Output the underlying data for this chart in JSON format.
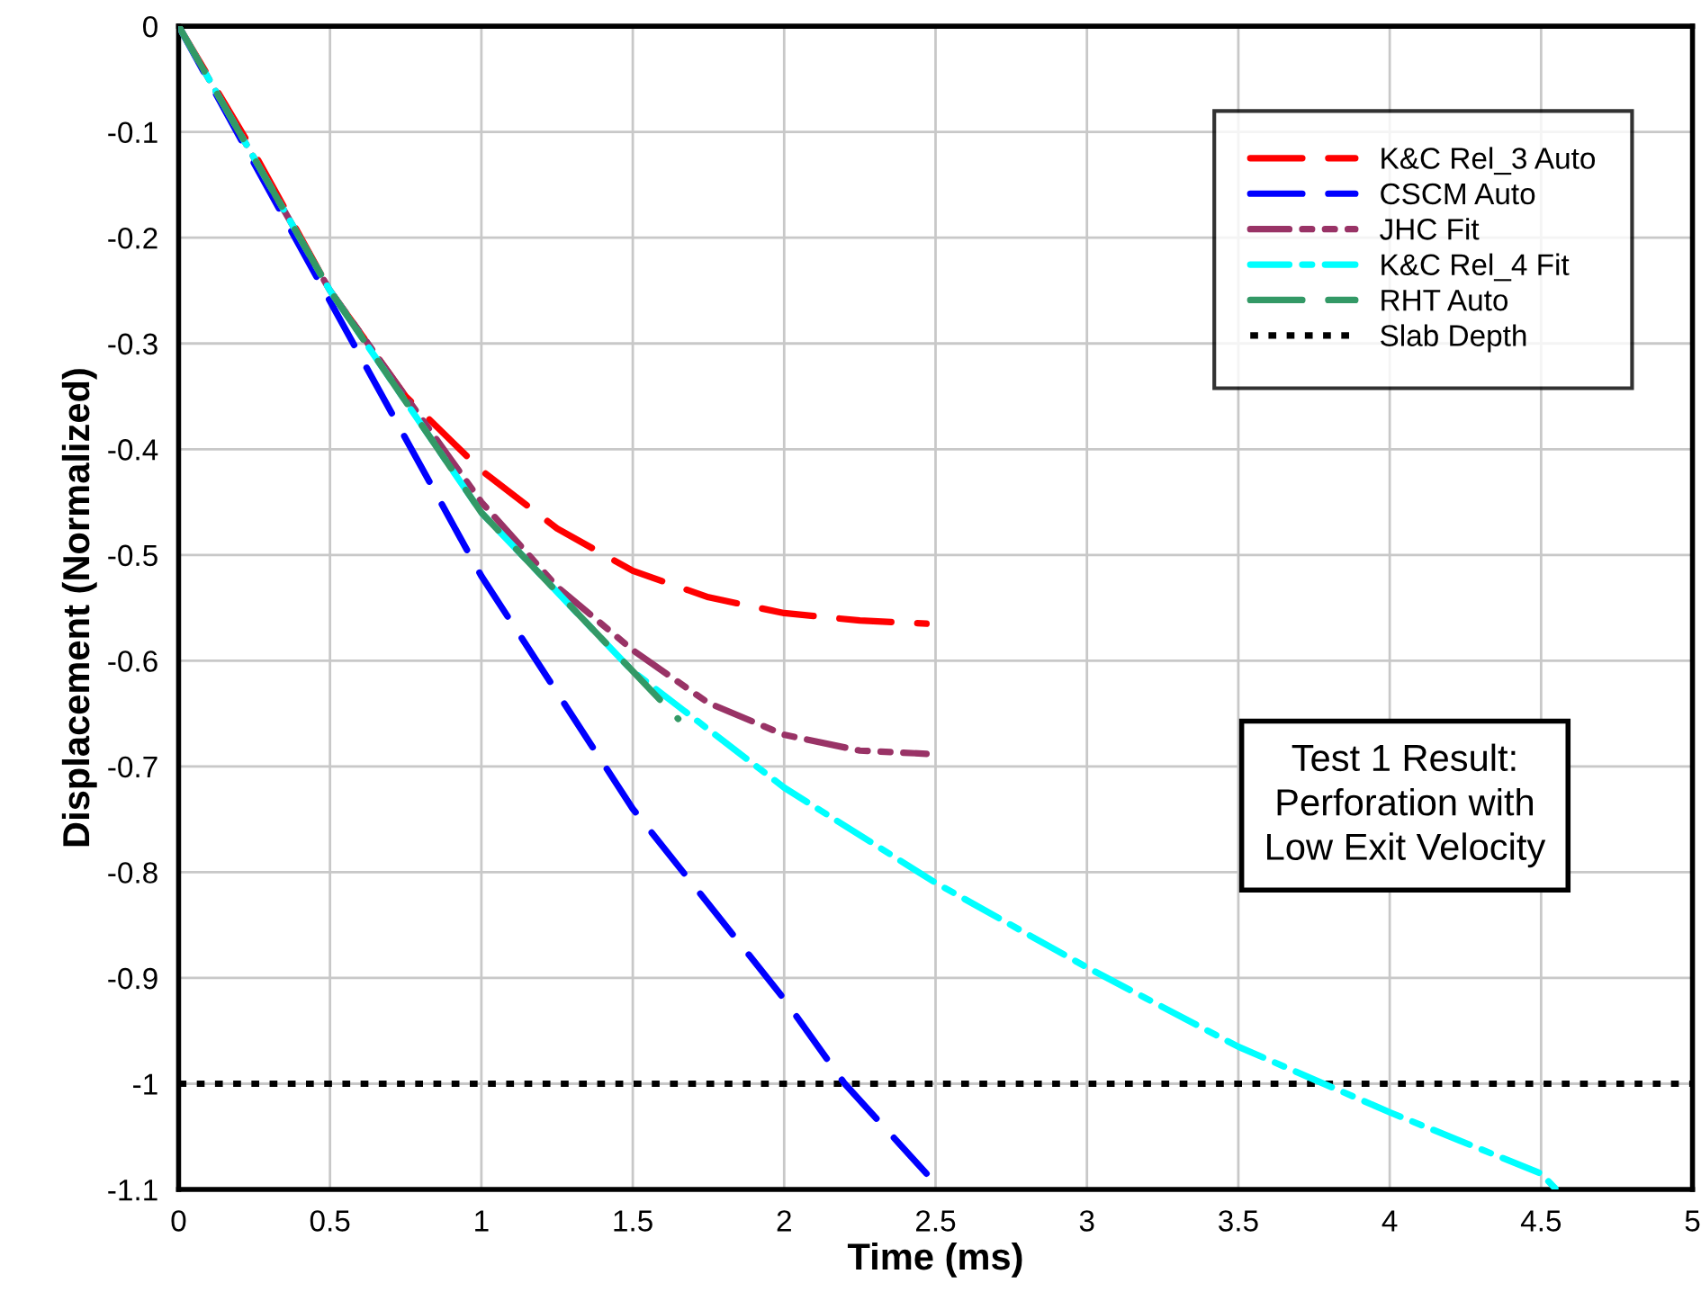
{
  "chart_data": {
    "type": "line",
    "xlabel": "Time (ms)",
    "ylabel": "Displacement (Normalized)",
    "xlim": [
      0,
      5
    ],
    "xticks": [
      0,
      0.5,
      1,
      1.5,
      2,
      2.5,
      3,
      3.5,
      4,
      4.5,
      5
    ],
    "ylim": [
      -1.1,
      0
    ],
    "yticks": [
      0,
      -0.1,
      -0.2,
      -0.3,
      -0.4,
      -0.5,
      -0.6,
      -0.7,
      -0.8,
      -0.9,
      -1,
      -1.1
    ],
    "grid": true,
    "legend": "top right",
    "marker": "none",
    "series": [
      {
        "name": "K&C Rel_3 Auto",
        "color": "#ff0000",
        "line_style": "dashed",
        "x": [
          0,
          0.25,
          0.5,
          0.75,
          1,
          1.25,
          1.5,
          1.75,
          2,
          2.25,
          2.47
        ],
        "values": [
          0,
          -0.12,
          -0.25,
          -0.35,
          -0.42,
          -0.475,
          -0.515,
          -0.54,
          -0.555,
          -0.562,
          -0.565
        ]
      },
      {
        "name": "CSCM Auto",
        "color": "#0000ff",
        "line_style": "dashed",
        "x": [
          0,
          0.5,
          1,
          1.5,
          2,
          2.2,
          2.47
        ],
        "values": [
          0,
          -0.26,
          -0.52,
          -0.74,
          -0.92,
          -1.0,
          -1.085
        ]
      },
      {
        "name": "JHC Fit",
        "color": "#993366",
        "line_style": "dashdotdot",
        "x": [
          0,
          0.5,
          1,
          1.25,
          1.5,
          1.75,
          2,
          2.25,
          2.47
        ],
        "values": [
          0,
          -0.25,
          -0.45,
          -0.53,
          -0.59,
          -0.64,
          -0.67,
          -0.685,
          -0.688
        ]
      },
      {
        "name": "K&C Rel_4 Fit",
        "color": "#00ffff",
        "line_style": "dashdot",
        "x": [
          0,
          0.5,
          1,
          1.5,
          2,
          2.5,
          3,
          3.5,
          4,
          4.5,
          4.55
        ],
        "values": [
          0,
          -0.25,
          -0.46,
          -0.61,
          -0.72,
          -0.81,
          -0.89,
          -0.965,
          -1.027,
          -1.085,
          -1.1
        ]
      },
      {
        "name": "RHT Auto",
        "color": "#339966",
        "line_style": "dashed",
        "x": [
          0,
          0.5,
          1,
          1.5,
          1.65
        ],
        "values": [
          0,
          -0.25,
          -0.46,
          -0.61,
          -0.655
        ]
      }
    ],
    "ref_lines": [
      {
        "axis": "y",
        "value": -1,
        "label": "Slab Depth",
        "color": "#000000",
        "line_style": "dotted"
      }
    ],
    "annotations": [
      "Test 1 Result:\nPerforation with\nLow Exit Velocity"
    ]
  }
}
